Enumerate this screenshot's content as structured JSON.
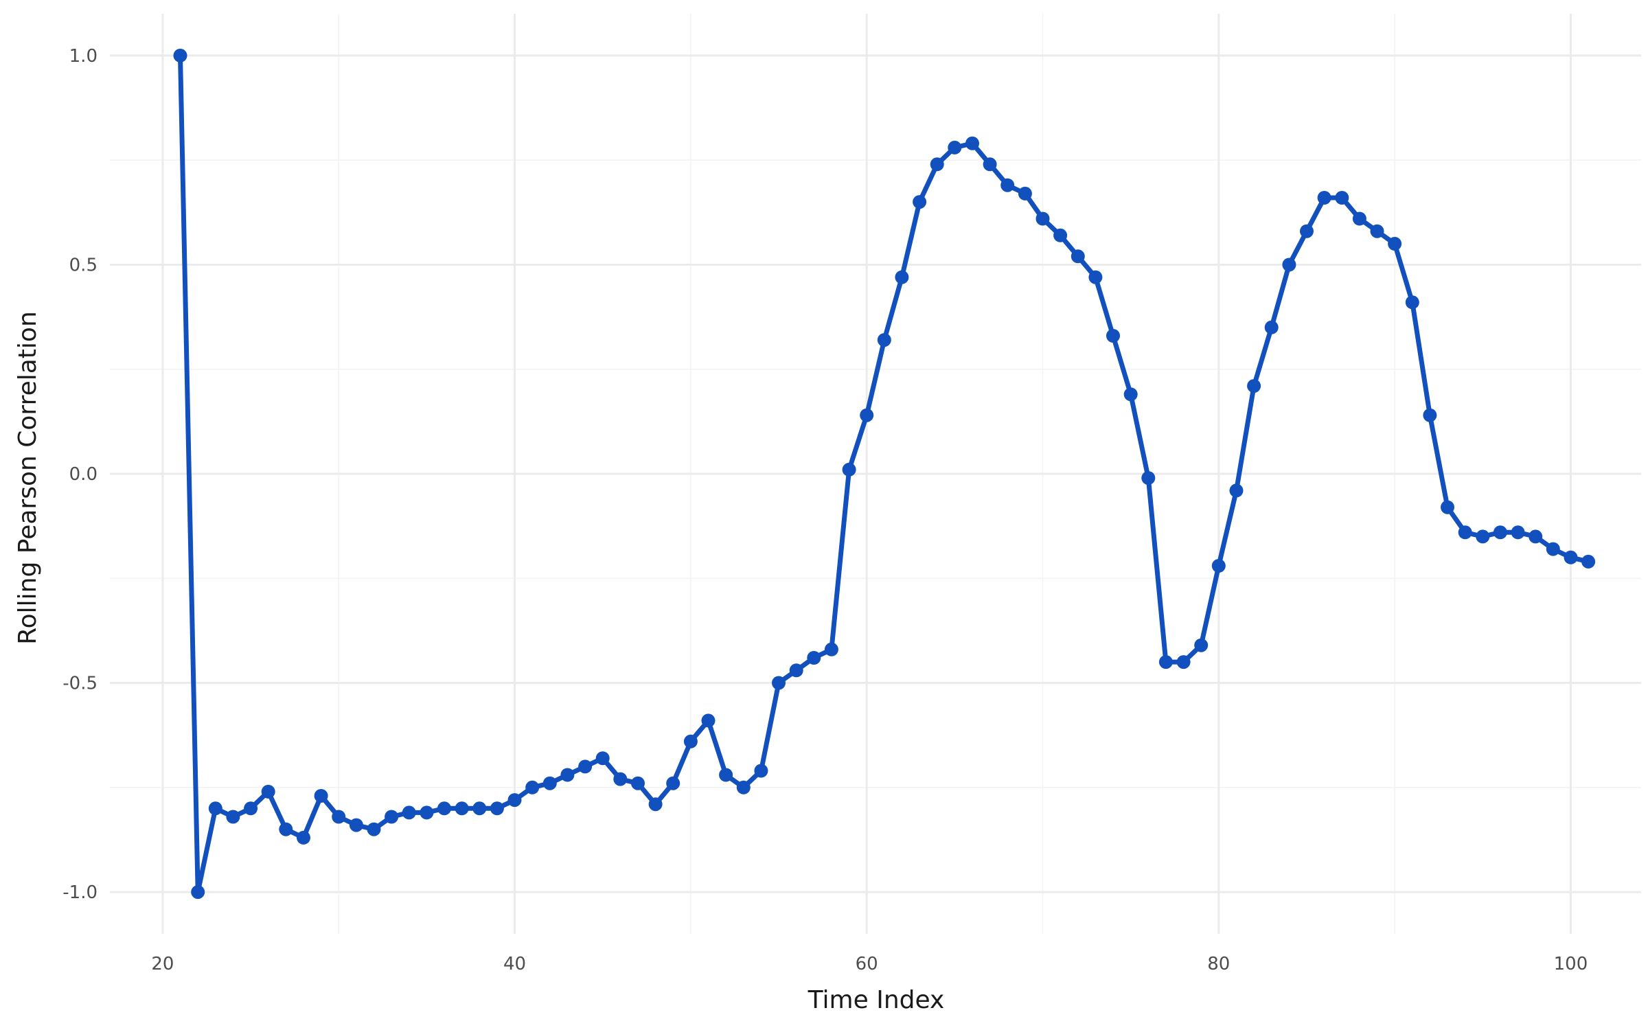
{
  "chart_data": {
    "type": "line",
    "title": "",
    "xlabel": "Time Index",
    "ylabel": "Rolling Pearson Correlation",
    "xlim": [
      17,
      104
    ],
    "ylim": [
      -1.1,
      1.1
    ],
    "x_ticks": [
      20,
      40,
      60,
      80,
      100
    ],
    "x_tick_labels": [
      "20",
      "40",
      "60",
      "80",
      "100"
    ],
    "x_minor_ticks": [
      30,
      50,
      70,
      90
    ],
    "y_ticks": [
      -1.0,
      -0.5,
      0.0,
      0.5,
      1.0
    ],
    "y_tick_labels": [
      "-1.0",
      "-0.5",
      "0.0",
      "0.5",
      "1.0"
    ],
    "y_minor_ticks": [
      -0.75,
      -0.25,
      0.25,
      0.75
    ],
    "grid": true,
    "legend": "none",
    "colors": {
      "line": "#1150bd",
      "grid_major": "#ebebeb",
      "grid_minor": "#f3f3f3"
    },
    "series": [
      {
        "x": [
          21,
          22,
          23,
          24,
          25,
          26,
          27,
          28,
          29,
          30,
          31,
          32,
          33,
          34,
          35,
          36,
          37,
          38,
          39,
          40,
          41,
          42,
          43,
          44,
          45,
          46,
          47,
          48,
          49,
          50,
          51,
          52,
          53,
          54,
          55,
          56,
          57,
          58,
          59,
          60,
          61,
          62,
          63,
          64,
          65,
          66,
          67,
          68,
          69,
          70,
          71,
          72,
          73,
          74,
          75,
          76,
          77,
          78,
          79,
          80,
          81,
          82,
          83,
          84,
          85,
          86,
          87,
          88,
          89,
          90,
          91,
          92,
          93,
          94,
          95,
          96,
          97,
          98,
          99,
          100,
          101
        ],
        "values": [
          1.0,
          -1.0,
          -0.8,
          -0.82,
          -0.8,
          -0.76,
          -0.85,
          -0.87,
          -0.77,
          -0.82,
          -0.84,
          -0.85,
          -0.82,
          -0.81,
          -0.81,
          -0.8,
          -0.8,
          -0.8,
          -0.8,
          -0.78,
          -0.75,
          -0.74,
          -0.72,
          -0.7,
          -0.68,
          -0.73,
          -0.74,
          -0.79,
          -0.74,
          -0.64,
          -0.59,
          -0.72,
          -0.75,
          -0.71,
          -0.5,
          -0.47,
          -0.44,
          -0.42,
          0.01,
          0.14,
          0.32,
          0.47,
          0.65,
          0.74,
          0.78,
          0.79,
          0.74,
          0.69,
          0.67,
          0.61,
          0.57,
          0.52,
          0.47,
          0.33,
          0.19,
          -0.01,
          -0.45,
          -0.45,
          -0.41,
          -0.22,
          -0.04,
          0.21,
          0.35,
          0.5,
          0.58,
          0.66,
          0.66,
          0.61,
          0.58,
          0.55,
          0.41,
          0.14,
          -0.08,
          -0.14,
          -0.15,
          -0.14,
          -0.14,
          -0.15,
          -0.18,
          -0.2,
          -0.21
        ]
      }
    ]
  }
}
